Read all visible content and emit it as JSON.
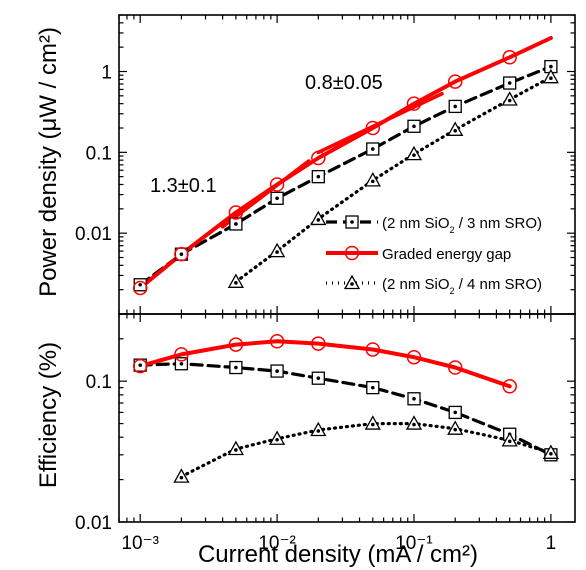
{
  "chart_data": [
    {
      "type": "line",
      "panel": "top",
      "ylabel": "Power density (μW / cm²)",
      "xscale": "log",
      "yscale": "log",
      "xlim": [
        0.0007,
        1.5
      ],
      "ylim": [
        0.001,
        5
      ],
      "ytick_labels": [
        "0.01",
        "0.1",
        "1"
      ],
      "series": [
        {
          "name": "(2 nm SiO2 / 3 nm SRO)",
          "line_style": "dashed",
          "marker": "square-dot",
          "color": "#000000",
          "x": [
            0.001,
            0.002,
            0.005,
            0.01,
            0.02,
            0.05,
            0.1,
            0.2,
            0.5,
            1
          ],
          "y": [
            0.0023,
            0.0055,
            0.013,
            0.027,
            0.05,
            0.11,
            0.21,
            0.37,
            0.72,
            1.15
          ]
        },
        {
          "name": "Graded energy gap",
          "line_style": "solid",
          "marker": "circle",
          "color": "#ff0000",
          "x": [
            0.001,
            0.002,
            0.005,
            0.01,
            0.02,
            0.05,
            0.1,
            0.2,
            0.5,
            1
          ],
          "y": [
            0.0021,
            0.0055,
            0.018,
            0.04,
            0.085,
            0.2,
            0.4,
            0.75,
            1.5,
            2.6
          ],
          "marker_x": [
            0.001,
            0.002,
            0.005,
            0.01,
            0.02,
            0.05,
            0.1,
            0.2,
            0.5
          ],
          "marker_y": [
            0.0021,
            0.0055,
            0.018,
            0.04,
            0.085,
            0.2,
            0.4,
            0.75,
            1.5
          ]
        },
        {
          "name": "(2 nm SiO2 / 4 nm SRO)",
          "line_style": "dotted",
          "marker": "triangle-dot",
          "color": "#000000",
          "x": [
            0.005,
            0.01,
            0.02,
            0.05,
            0.1,
            0.2,
            0.5,
            1
          ],
          "y": [
            0.0025,
            0.006,
            0.015,
            0.045,
            0.095,
            0.19,
            0.45,
            0.85
          ]
        }
      ],
      "fit_lines": [
        {
          "label": "1.3±0.1",
          "color": "#ff0000",
          "x": [
            0.004,
            0.017
          ],
          "y": [
            0.012,
            0.078
          ]
        },
        {
          "label": "0.8±0.05",
          "color": "#ff0000",
          "x": [
            0.02,
            0.16
          ],
          "y": [
            0.1,
            0.53
          ]
        }
      ],
      "legend": {
        "placement": "lower-right",
        "entries": [
          {
            "series": 0,
            "label": "(2 nm SiO",
            "sub": "2",
            "rest": " / 3 nm SRO)"
          },
          {
            "series": 1,
            "label": "Graded energy gap"
          },
          {
            "series": 2,
            "label": "(2 nm SiO",
            "sub": "2",
            "rest": " / 4 nm SRO)"
          }
        ]
      }
    },
    {
      "type": "line",
      "panel": "bottom",
      "xlabel": "Current density (mA / cm²)",
      "ylabel": "Efficiency (%)",
      "xscale": "log",
      "yscale": "log",
      "xlim": [
        0.0007,
        1.5
      ],
      "ylim": [
        0.01,
        0.3
      ],
      "ytick_labels": [
        "0.01",
        "0.1"
      ],
      "xtick_labels": [
        "10⁻³",
        "10⁻²",
        "10⁻¹",
        "1"
      ],
      "series": [
        {
          "name": "(2 nm SiO2 / 3 nm SRO)",
          "line_style": "dashed",
          "marker": "square-dot",
          "color": "#000000",
          "x": [
            0.001,
            0.002,
            0.005,
            0.01,
            0.02,
            0.05,
            0.1,
            0.2,
            0.5,
            1
          ],
          "y": [
            0.13,
            0.133,
            0.125,
            0.118,
            0.105,
            0.09,
            0.075,
            0.06,
            0.042,
            0.03
          ]
        },
        {
          "name": "Graded energy gap",
          "line_style": "solid",
          "marker": "circle",
          "color": "#ff0000",
          "x": [
            0.001,
            0.002,
            0.005,
            0.01,
            0.02,
            0.05,
            0.1,
            0.2,
            0.5
          ],
          "y": [
            0.128,
            0.155,
            0.182,
            0.192,
            0.185,
            0.168,
            0.148,
            0.125,
            0.092
          ]
        },
        {
          "name": "(2 nm SiO2 / 4 nm SRO)",
          "line_style": "dotted",
          "marker": "triangle-dot",
          "color": "#000000",
          "x": [
            0.002,
            0.005,
            0.01,
            0.02,
            0.05,
            0.1,
            0.2,
            0.5,
            1
          ],
          "y": [
            0.021,
            0.033,
            0.039,
            0.045,
            0.05,
            0.05,
            0.046,
            0.038,
            0.031
          ]
        }
      ]
    }
  ]
}
